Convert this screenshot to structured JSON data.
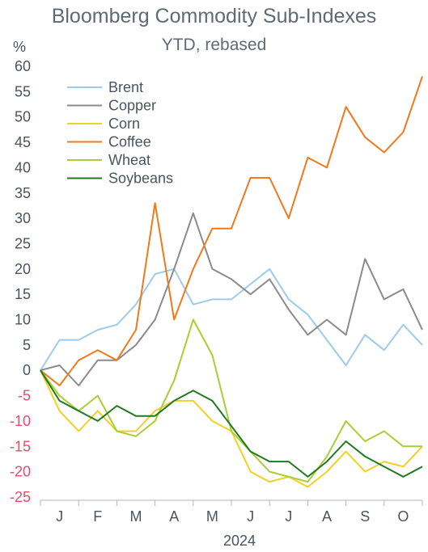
{
  "chart_data": {
    "type": "line",
    "title": "Bloomberg Commodity Sub-Indexes",
    "subtitle": "YTD, rebased",
    "ylabel": "%",
    "xlabel": "2024",
    "ylim": [
      -25,
      60
    ],
    "yticks": [
      60,
      55,
      50,
      45,
      40,
      35,
      30,
      25,
      20,
      15,
      10,
      5,
      0,
      -5,
      -10,
      -15,
      -20,
      -25
    ],
    "categories": [
      "J",
      "F",
      "M",
      "A",
      "M",
      "J",
      "J",
      "A",
      "S",
      "O"
    ],
    "x": [
      0,
      0.5,
      1,
      1.5,
      2,
      2.5,
      3,
      3.5,
      4,
      4.5,
      5,
      5.5,
      6,
      6.5,
      7,
      7.5,
      8,
      8.5,
      9,
      9.5,
      10
    ],
    "legend_position": "top-left",
    "grid": false,
    "series": [
      {
        "name": "Brent",
        "color": "#9dcbed",
        "values": [
          0,
          6,
          6,
          8,
          9,
          13,
          19,
          20,
          13,
          14,
          14,
          17,
          20,
          14,
          11,
          6,
          1,
          7,
          4,
          9,
          5
        ]
      },
      {
        "name": "Copper",
        "color": "#8b8b8b",
        "values": [
          0,
          1,
          -3,
          2,
          2,
          5,
          10,
          20,
          31,
          20,
          18,
          15,
          18,
          12,
          7,
          10,
          7,
          22,
          14,
          16,
          8
        ]
      },
      {
        "name": "Corn",
        "color": "#f2d024",
        "values": [
          0,
          -8,
          -12,
          -8,
          -12,
          -12,
          -8,
          -6,
          -6,
          -10,
          -12,
          -20,
          -22,
          -21,
          -23,
          -20,
          -16,
          -20,
          -18,
          -19,
          -15
        ]
      },
      {
        "name": "Coffee",
        "color": "#f07a1b",
        "values": [
          0,
          -3,
          2,
          4,
          2,
          8,
          33,
          10,
          20,
          28,
          28,
          38,
          38,
          30,
          42,
          40,
          52,
          46,
          43,
          47,
          58
        ]
      },
      {
        "name": "Wheat",
        "color": "#a8cf32",
        "values": [
          0,
          -5,
          -8,
          -5,
          -12,
          -13,
          -10,
          -2,
          10,
          3,
          -12,
          -16,
          -20,
          -21,
          -22,
          -17,
          -10,
          -14,
          -12,
          -15,
          -15
        ]
      },
      {
        "name": "Soybeans",
        "color": "#1f7a1f",
        "values": [
          0,
          -6,
          -8,
          -10,
          -7,
          -9,
          -9,
          -6,
          -4,
          -6,
          -11,
          -16,
          -18,
          -18,
          -21,
          -18,
          -14,
          -17,
          -19,
          -21,
          -19
        ]
      }
    ]
  }
}
